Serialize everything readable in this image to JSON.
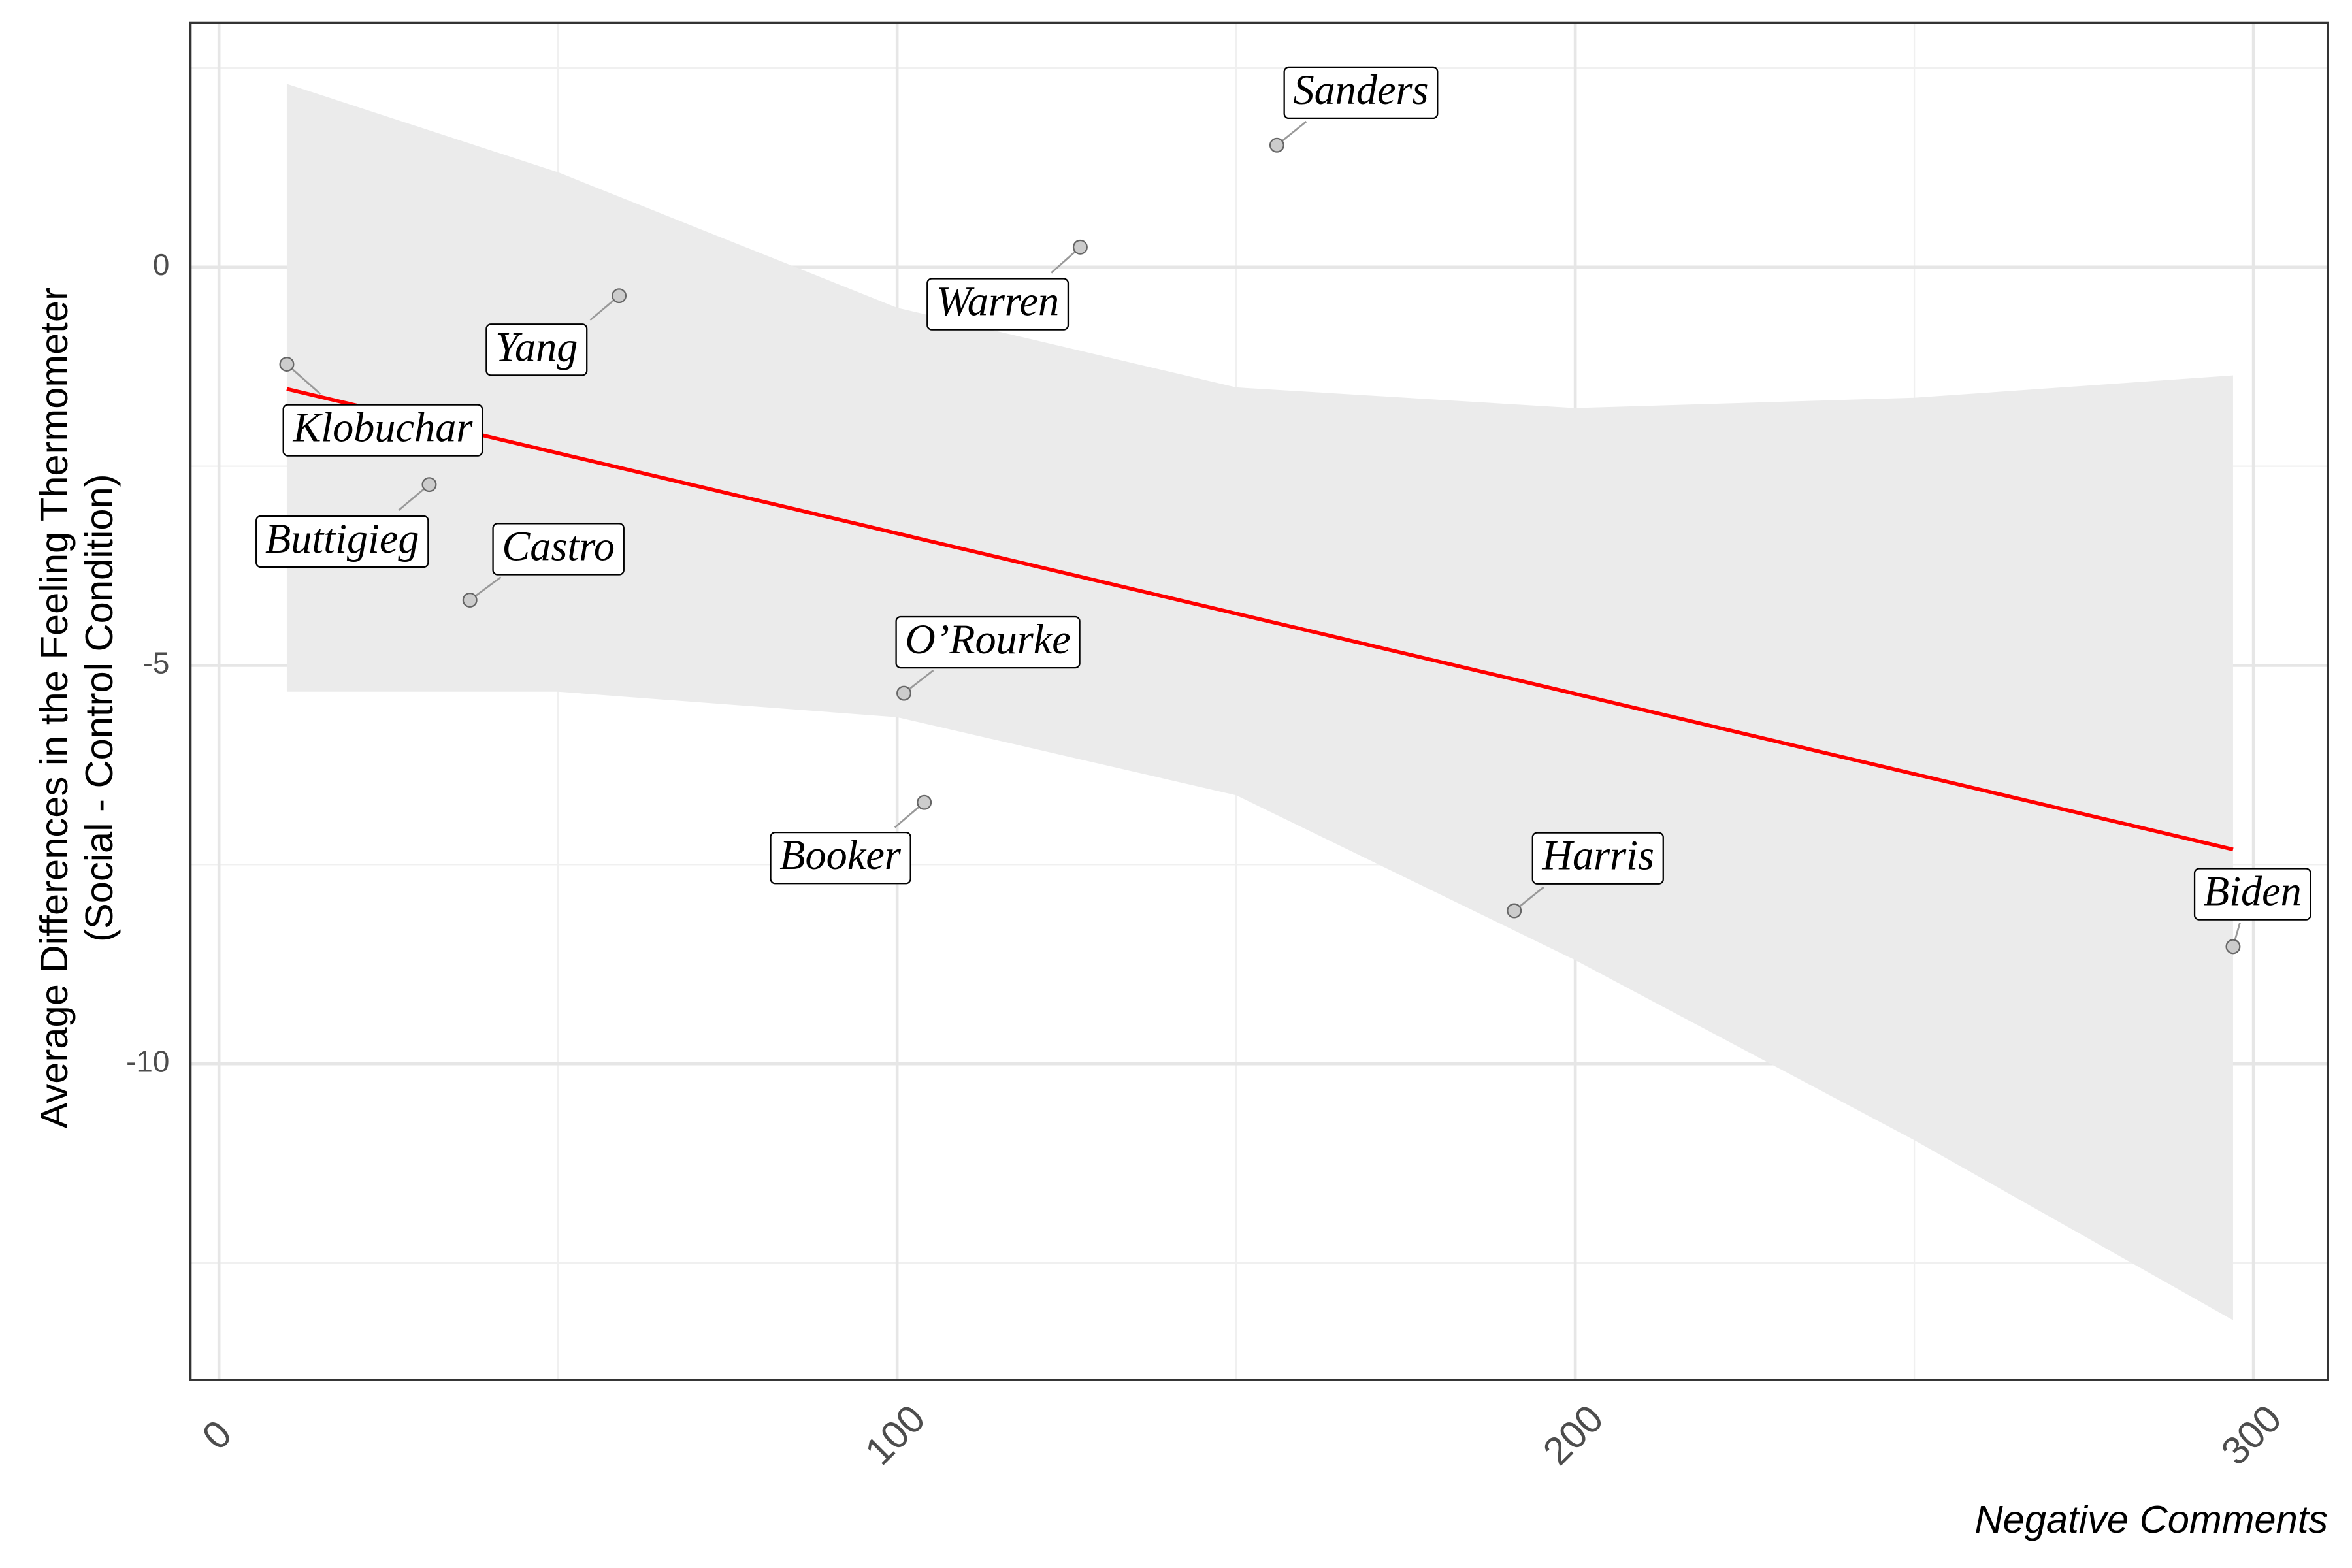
{
  "chart_data": {
    "type": "scatter",
    "x_label": "Negative Comments",
    "y_label": [
      "Average Differences in the Feeling Thermometer",
      "(Social - Control Condition)"
    ],
    "xlim": [
      -4.2,
      311
    ],
    "ylim": [
      -13.97,
      3.07
    ],
    "xticks": [
      0,
      100,
      200,
      300
    ],
    "yticks": [
      0,
      -5,
      -10
    ],
    "x_minor_ticks": [
      50,
      150,
      250
    ],
    "y_minor_ticks": [
      2.5,
      -2.5,
      -7.5,
      -12.5
    ],
    "grid": true,
    "labels": [
      "Klobuchar",
      "Buttigieg",
      "Castro",
      "Yang",
      "O’Rourke",
      "Booker",
      "Warren",
      "Sanders",
      "Harris",
      "Biden"
    ],
    "x": [
      10,
      31,
      37,
      59,
      101,
      104,
      127,
      156,
      191,
      297
    ],
    "y": [
      -1.22,
      -2.73,
      -4.18,
      -0.36,
      -5.35,
      -6.72,
      0.25,
      1.53,
      -8.08,
      -8.53
    ],
    "point_color": "#cccccc",
    "fit": {
      "color": "#ff0000",
      "x": [
        10,
        297
      ],
      "y": [
        -1.53,
        -7.31
      ]
    },
    "band": {
      "color": "#ebebeb",
      "x": [
        10,
        50,
        100,
        150,
        200,
        250,
        297
      ],
      "upper": [
        2.3,
        1.19,
        -0.51,
        -1.51,
        -1.77,
        -1.64,
        -1.36
      ],
      "lower": [
        -5.33,
        -5.33,
        -5.65,
        -6.63,
        -8.7,
        -10.96,
        -13.22
      ]
    }
  }
}
